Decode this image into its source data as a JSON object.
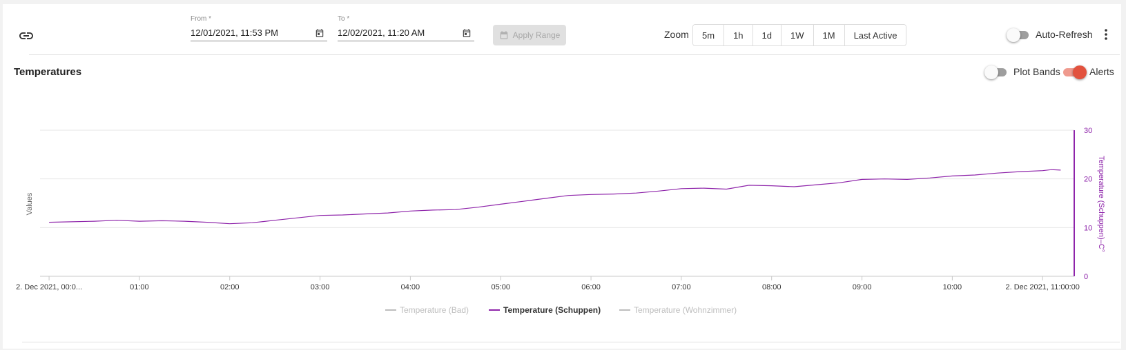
{
  "toolbar": {
    "from_label": "From *",
    "from_value": "12/01/2021, 11:53 PM",
    "to_label": "To *",
    "to_value": "12/02/2021, 11:20 AM",
    "apply_label": "Apply Range",
    "zoom_label": "Zoom",
    "zoom_options": [
      "5m",
      "1h",
      "1d",
      "1W",
      "1M",
      "Last Active"
    ],
    "auto_refresh_label": "Auto-Refresh",
    "auto_refresh_on": false
  },
  "panel": {
    "title": "Temperatures",
    "plot_bands_label": "Plot Bands",
    "plot_bands_on": false,
    "alerts_label": "Alerts",
    "alerts_on": true
  },
  "colors": {
    "series_active": "#8e24aa",
    "series_inactive": "#bdbdbd",
    "alert_on": "#e2523e"
  },
  "chart_data": {
    "type": "line",
    "ylabel_left": "Values",
    "ylabel_right": "Temperature (Schuppen)–C°",
    "ylim": [
      0,
      30
    ],
    "yticks": [
      0,
      10,
      20,
      30
    ],
    "xlim_hours": [
      -0.1,
      11.35
    ],
    "x_ticks": [
      {
        "h": 0,
        "label": "2. Dec 2021, 00:0..."
      },
      {
        "h": 1,
        "label": "01:00"
      },
      {
        "h": 2,
        "label": "02:00"
      },
      {
        "h": 3,
        "label": "03:00"
      },
      {
        "h": 4,
        "label": "04:00"
      },
      {
        "h": 5,
        "label": "05:00"
      },
      {
        "h": 6,
        "label": "06:00"
      },
      {
        "h": 7,
        "label": "07:00"
      },
      {
        "h": 8,
        "label": "08:00"
      },
      {
        "h": 9,
        "label": "09:00"
      },
      {
        "h": 10,
        "label": "10:00"
      },
      {
        "h": 11,
        "label": "2. Dec 2021, 11:00:00"
      }
    ],
    "grid": true,
    "legend_position": "bottom-center",
    "series": [
      {
        "name": "Temperature (Bad)",
        "visible": false,
        "points": []
      },
      {
        "name": "Temperature (Schuppen)",
        "visible": true,
        "points": [
          [
            0.0,
            11.1
          ],
          [
            0.25,
            11.2
          ],
          [
            0.5,
            11.3
          ],
          [
            0.75,
            11.5
          ],
          [
            1.0,
            11.3
          ],
          [
            1.25,
            11.4
          ],
          [
            1.5,
            11.3
          ],
          [
            1.75,
            11.1
          ],
          [
            2.0,
            10.8
          ],
          [
            2.25,
            11.0
          ],
          [
            2.5,
            11.5
          ],
          [
            2.75,
            12.0
          ],
          [
            3.0,
            12.5
          ],
          [
            3.25,
            12.6
          ],
          [
            3.5,
            12.8
          ],
          [
            3.75,
            13.0
          ],
          [
            4.0,
            13.4
          ],
          [
            4.25,
            13.6
          ],
          [
            4.5,
            13.7
          ],
          [
            4.75,
            14.2
          ],
          [
            5.0,
            14.8
          ],
          [
            5.25,
            15.4
          ],
          [
            5.5,
            16.0
          ],
          [
            5.75,
            16.6
          ],
          [
            6.0,
            16.8
          ],
          [
            6.25,
            16.9
          ],
          [
            6.5,
            17.1
          ],
          [
            6.75,
            17.5
          ],
          [
            7.0,
            18.0
          ],
          [
            7.25,
            18.1
          ],
          [
            7.5,
            17.9
          ],
          [
            7.75,
            18.7
          ],
          [
            8.0,
            18.6
          ],
          [
            8.25,
            18.4
          ],
          [
            8.5,
            18.8
          ],
          [
            8.75,
            19.2
          ],
          [
            9.0,
            19.9
          ],
          [
            9.25,
            20.0
          ],
          [
            9.5,
            19.9
          ],
          [
            9.75,
            20.2
          ],
          [
            10.0,
            20.6
          ],
          [
            10.25,
            20.8
          ],
          [
            10.5,
            21.2
          ],
          [
            10.75,
            21.5
          ],
          [
            11.0,
            21.7
          ],
          [
            11.1,
            21.9
          ],
          [
            11.2,
            21.8
          ]
        ]
      },
      {
        "name": "Temperature (Wohnzimmer)",
        "visible": false,
        "points": []
      }
    ]
  }
}
